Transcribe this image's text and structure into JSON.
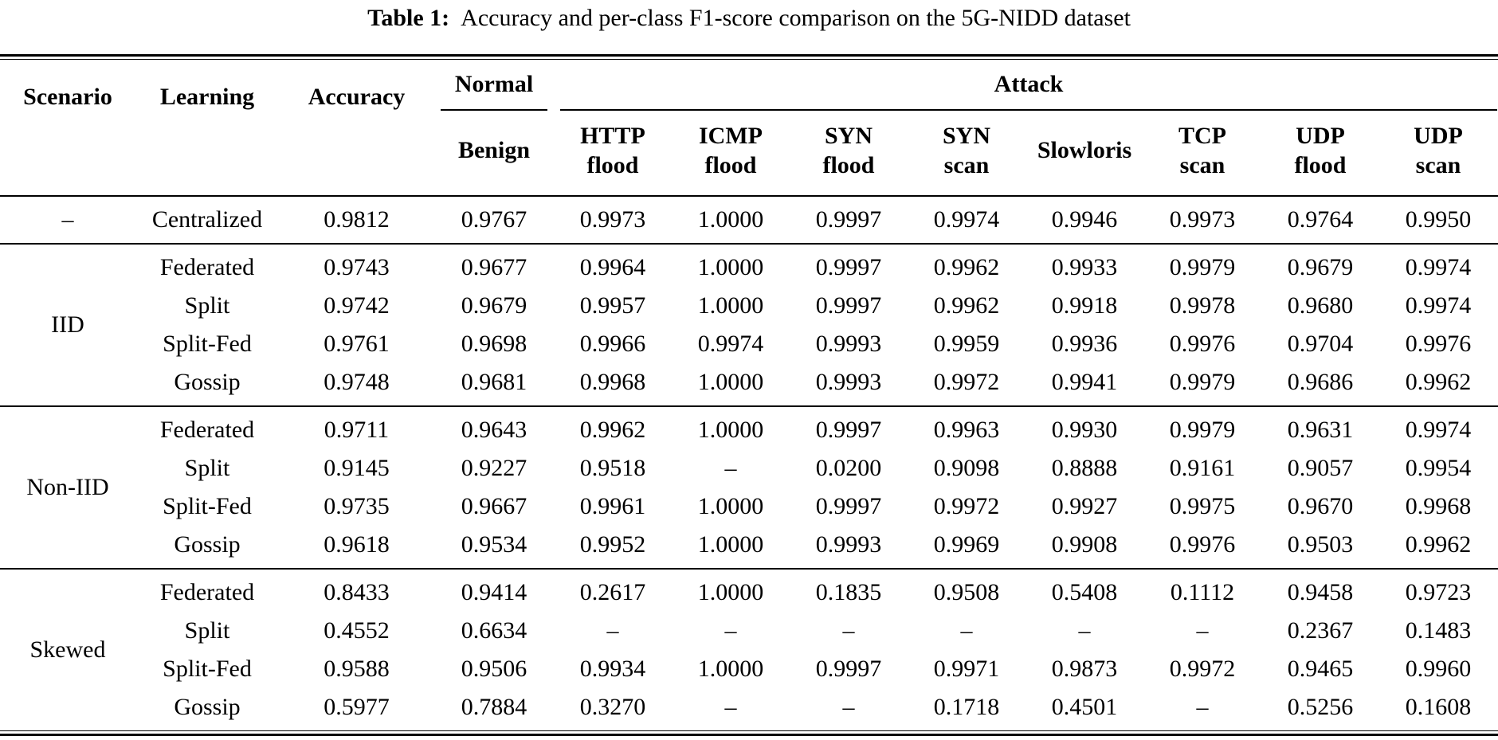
{
  "title": {
    "label": "Table 1:",
    "text": "Accuracy and per-class F1-score comparison on the 5G-NIDD dataset"
  },
  "header": {
    "scenario": "Scenario",
    "learning": "Learning",
    "accuracy": "Accuracy",
    "normal_group": "Normal",
    "attack_group": "Attack",
    "benign": "Benign",
    "attack_columns": [
      {
        "line1": "HTTP",
        "line2": "flood"
      },
      {
        "line1": "ICMP",
        "line2": "flood"
      },
      {
        "line1": "SYN",
        "line2": "flood"
      },
      {
        "line1": "SYN",
        "line2": "scan"
      },
      {
        "line1": "Slowloris",
        "line2": ""
      },
      {
        "line1": "TCP",
        "line2": "scan"
      },
      {
        "line1": "UDP",
        "line2": "flood"
      },
      {
        "line1": "UDP",
        "line2": "scan"
      }
    ]
  },
  "table": {
    "value_column_order": [
      "Accuracy",
      "Benign",
      "HTTP flood",
      "ICMP flood",
      "SYN flood",
      "SYN scan",
      "Slowloris",
      "TCP scan",
      "UDP flood",
      "UDP scan"
    ],
    "sections": [
      {
        "scenario": "–",
        "rows": [
          {
            "learning": "Centralized",
            "values": [
              "0.9812",
              "0.9767",
              "0.9973",
              "1.0000",
              "0.9997",
              "0.9974",
              "0.9946",
              "0.9973",
              "0.9764",
              "0.9950"
            ]
          }
        ]
      },
      {
        "scenario": "IID",
        "rows": [
          {
            "learning": "Federated",
            "values": [
              "0.9743",
              "0.9677",
              "0.9964",
              "1.0000",
              "0.9997",
              "0.9962",
              "0.9933",
              "0.9979",
              "0.9679",
              "0.9974"
            ]
          },
          {
            "learning": "Split",
            "values": [
              "0.9742",
              "0.9679",
              "0.9957",
              "1.0000",
              "0.9997",
              "0.9962",
              "0.9918",
              "0.9978",
              "0.9680",
              "0.9974"
            ]
          },
          {
            "learning": "Split-Fed",
            "values": [
              "0.9761",
              "0.9698",
              "0.9966",
              "0.9974",
              "0.9993",
              "0.9959",
              "0.9936",
              "0.9976",
              "0.9704",
              "0.9976"
            ]
          },
          {
            "learning": "Gossip",
            "values": [
              "0.9748",
              "0.9681",
              "0.9968",
              "1.0000",
              "0.9993",
              "0.9972",
              "0.9941",
              "0.9979",
              "0.9686",
              "0.9962"
            ]
          }
        ]
      },
      {
        "scenario": "Non-IID",
        "rows": [
          {
            "learning": "Federated",
            "values": [
              "0.9711",
              "0.9643",
              "0.9962",
              "1.0000",
              "0.9997",
              "0.9963",
              "0.9930",
              "0.9979",
              "0.9631",
              "0.9974"
            ]
          },
          {
            "learning": "Split",
            "values": [
              "0.9145",
              "0.9227",
              "0.9518",
              "–",
              "0.0200",
              "0.9098",
              "0.8888",
              "0.9161",
              "0.9057",
              "0.9954"
            ]
          },
          {
            "learning": "Split-Fed",
            "values": [
              "0.9735",
              "0.9667",
              "0.9961",
              "1.0000",
              "0.9997",
              "0.9972",
              "0.9927",
              "0.9975",
              "0.9670",
              "0.9968"
            ]
          },
          {
            "learning": "Gossip",
            "values": [
              "0.9618",
              "0.9534",
              "0.9952",
              "1.0000",
              "0.9993",
              "0.9969",
              "0.9908",
              "0.9976",
              "0.9503",
              "0.9962"
            ]
          }
        ]
      },
      {
        "scenario": "Skewed",
        "rows": [
          {
            "learning": "Federated",
            "values": [
              "0.8433",
              "0.9414",
              "0.2617",
              "1.0000",
              "0.1835",
              "0.9508",
              "0.5408",
              "0.1112",
              "0.9458",
              "0.9723"
            ]
          },
          {
            "learning": "Split",
            "values": [
              "0.4552",
              "0.6634",
              "–",
              "–",
              "–",
              "–",
              "–",
              "–",
              "0.2367",
              "0.1483"
            ]
          },
          {
            "learning": "Split-Fed",
            "values": [
              "0.9588",
              "0.9506",
              "0.9934",
              "1.0000",
              "0.9997",
              "0.9971",
              "0.9873",
              "0.9972",
              "0.9465",
              "0.9960"
            ]
          },
          {
            "learning": "Gossip",
            "values": [
              "0.5977",
              "0.7884",
              "0.3270",
              "–",
              "–",
              "0.1718",
              "0.4501",
              "–",
              "0.5256",
              "0.1608"
            ]
          }
        ]
      }
    ]
  }
}
